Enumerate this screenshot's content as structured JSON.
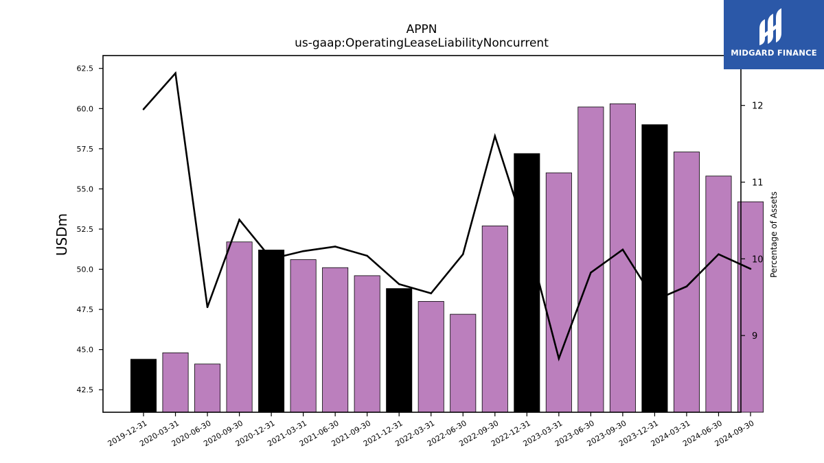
{
  "brand": {
    "name": "MIDGARD FINANCE",
    "bg_color": "#2b58a8"
  },
  "chart_data": {
    "type": "bar",
    "title": "APPN",
    "subtitle": "us-gaap:OperatingLeaseLiabilityNoncurrent",
    "ylabel": "USDm",
    "y2label": "Percentage of Assets",
    "ylim": [
      41.1,
      63.3
    ],
    "y2lim": [
      8.0,
      12.65
    ],
    "yticks": [
      "42.5",
      "45.0",
      "47.5",
      "50.0",
      "52.5",
      "55.0",
      "57.5",
      "60.0",
      "62.5"
    ],
    "y2ticks": [
      "9",
      "10",
      "11",
      "12"
    ],
    "categories": [
      "2019-12-31",
      "2020-03-31",
      "2020-06-30",
      "2020-09-30",
      "2020-12-31",
      "2021-03-31",
      "2021-06-30",
      "2021-09-30",
      "2021-12-31",
      "2022-03-31",
      "2022-06-30",
      "2022-09-30",
      "2022-12-31",
      "2023-03-31",
      "2023-06-30",
      "2023-09-30",
      "2023-12-31",
      "2024-03-31",
      "2024-06-30",
      "2024-09-30"
    ],
    "series": [
      {
        "kind": "bar",
        "axis": "left",
        "values": [
          44.4,
          44.8,
          44.1,
          51.7,
          51.2,
          50.6,
          50.1,
          49.6,
          48.8,
          48.0,
          47.2,
          52.7,
          57.2,
          56.0,
          60.1,
          60.3,
          59.0,
          57.3,
          55.8,
          54.2
        ],
        "colors": [
          "#000000",
          "#bb7fbd",
          "#bb7fbd",
          "#bb7fbd",
          "#000000",
          "#bb7fbd",
          "#bb7fbd",
          "#bb7fbd",
          "#000000",
          "#bb7fbd",
          "#bb7fbd",
          "#bb7fbd",
          "#000000",
          "#bb7fbd",
          "#bb7fbd",
          "#bb7fbd",
          "#000000",
          "#bb7fbd",
          "#bb7fbd",
          "#bb7fbd"
        ]
      },
      {
        "kind": "line",
        "axis": "right",
        "color": "#000000",
        "values": [
          11.95,
          12.42,
          9.37,
          10.51,
          10.0,
          10.1,
          10.16,
          10.04,
          9.67,
          9.55,
          10.06,
          11.6,
          10.3,
          8.7,
          9.82,
          10.12,
          9.46,
          9.64,
          10.06,
          9.87
        ]
      }
    ],
    "grid": false,
    "legend": "none"
  }
}
